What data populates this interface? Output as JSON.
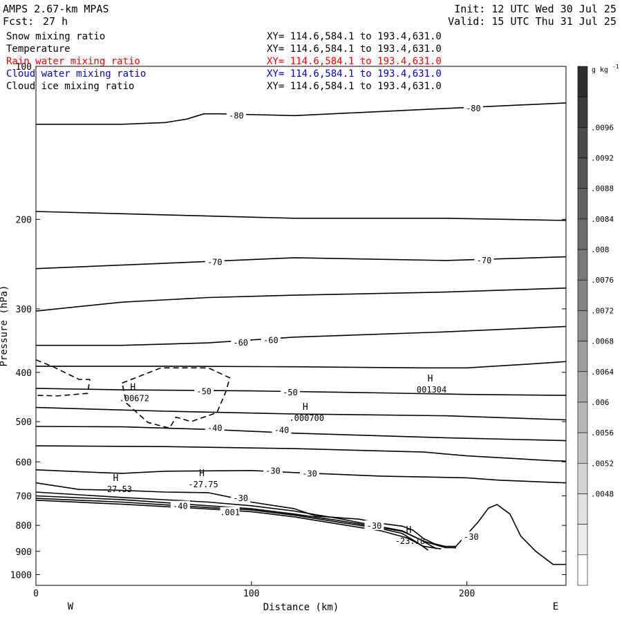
{
  "header": {
    "model": "AMPS 2.67-km MPAS",
    "fcst_label": "Fcst:",
    "fcst_value": "27 h",
    "init": "Init: 12 UTC Wed 30 Jul 25",
    "valid": "Valid: 15 UTC Thu 31 Jul 25"
  },
  "fields": [
    {
      "name": "Snow mixing ratio",
      "xy": "XY= 114.6,584.1 to 193.4,631.0",
      "color": "#000000"
    },
    {
      "name": "Temperature",
      "xy": "XY= 114.6,584.1 to 193.4,631.0",
      "color": "#000000"
    },
    {
      "name": "Rain water mixing ratio",
      "xy": "XY= 114.6,584.1 to 193.4,631.0",
      "color": "#ff0000"
    },
    {
      "name": "Cloud water mixing ratio",
      "xy": "XY= 114.6,584.1 to 193.4,631.0",
      "color": "#0000cc"
    },
    {
      "name": "Cloud ice mixing ratio",
      "xy": "XY= 114.6,584.1 to 193.4,631.0",
      "color": "#000000"
    }
  ],
  "chart_data": {
    "type": "line",
    "xlabel": "Distance (km)",
    "ylabel": "Pressure (hPa)",
    "xlim": [
      0,
      246
    ],
    "ylim": [
      1050,
      100
    ],
    "yscale": "log",
    "x_ticks": [
      0,
      100,
      200
    ],
    "y_ticks": [
      100,
      200,
      300,
      400,
      500,
      600,
      700,
      800,
      900,
      1000
    ],
    "x_end_labels": {
      "left": "W",
      "right": "E"
    },
    "temperature_isotherms": [
      {
        "level": -80,
        "x": [
          0,
          40,
          60,
          70,
          78,
          85,
          120,
          190,
          246
        ],
        "p": [
          130,
          130,
          129,
          127,
          124,
          124,
          125,
          121,
          118
        ]
      },
      {
        "level": -75,
        "x": [
          0,
          60,
          120,
          190,
          246
        ],
        "p": [
          193,
          196,
          199,
          199,
          201
        ]
      },
      {
        "level": -70,
        "x": [
          0,
          60,
          120,
          190,
          246
        ],
        "p": [
          250,
          244,
          238,
          241,
          237
        ]
      },
      {
        "level": -65,
        "x": [
          0,
          40,
          80,
          120,
          190,
          246
        ],
        "p": [
          303,
          291,
          285,
          282,
          278,
          273
        ]
      },
      {
        "level": -60,
        "x": [
          0,
          40,
          80,
          120,
          190,
          246
        ],
        "p": [
          354,
          354,
          350,
          341,
          333,
          325
        ]
      },
      {
        "level": -55,
        "x": [
          0,
          60,
          120,
          180,
          200,
          230,
          246
        ],
        "p": [
          389,
          389,
          390,
          392,
          392,
          385,
          381
        ]
      },
      {
        "level": -50,
        "x": [
          0,
          40,
          100,
          160,
          200,
          246
        ],
        "p": [
          430,
          433,
          435,
          439,
          442,
          444
        ]
      },
      {
        "level": -45,
        "x": [
          0,
          60,
          120,
          190,
          246
        ],
        "p": [
          469,
          477,
          483,
          487,
          496
        ]
      },
      {
        "level": -40,
        "x": [
          0,
          40,
          80,
          120,
          190,
          246
        ],
        "p": [
          511,
          512,
          518,
          527,
          538,
          545
        ]
      },
      {
        "level": -35,
        "x": [
          0,
          60,
          120,
          180,
          200,
          240,
          246
        ],
        "p": [
          558,
          560,
          565,
          574,
          584,
          597,
          598
        ]
      },
      {
        "level": -30,
        "x": [
          0,
          30,
          40,
          60,
          100,
          120,
          160,
          200,
          215,
          246
        ],
        "p": [
          622,
          630,
          632,
          626,
          624,
          630,
          640,
          645,
          652,
          660
        ]
      },
      {
        "level": -30,
        "x": [
          0,
          20,
          40,
          60,
          80,
          90,
          100,
          120,
          130,
          150,
          160,
          170,
          175,
          180,
          185,
          190,
          195
        ],
        "p": [
          660,
          680,
          683,
          688,
          690,
          704,
          720,
          742,
          767,
          778,
          793,
          803,
          818,
          850,
          870,
          880,
          880
        ]
      },
      {
        "level": -35,
        "x": [
          0,
          40,
          80,
          100,
          120,
          140,
          160,
          170,
          180,
          190,
          195
        ],
        "p": [
          688,
          705,
          720,
          732,
          750,
          775,
          805,
          820,
          860,
          885,
          885
        ]
      },
      {
        "level": -40,
        "x": [
          0,
          40,
          80,
          100,
          120,
          140,
          160,
          170,
          178,
          186
        ],
        "p": [
          700,
          712,
          732,
          742,
          760,
          782,
          808,
          822,
          852,
          890
        ]
      },
      {
        "level": -45,
        "x": [
          0,
          40,
          80,
          100,
          120,
          140,
          160,
          170,
          176,
          182
        ],
        "p": [
          708,
          720,
          738,
          746,
          764,
          788,
          812,
          830,
          860,
          895
        ]
      },
      {
        "level": -50,
        "x": [
          0,
          40,
          80,
          100,
          120,
          140,
          160,
          172,
          180,
          188
        ],
        "p": [
          714,
          727,
          743,
          752,
          770,
          795,
          820,
          846,
          880,
          890
        ]
      },
      {
        "level": -30,
        "x": [
          194,
          205,
          210,
          214,
          220,
          225,
          232,
          240,
          246
        ],
        "p": [
          888,
          790,
          740,
          728,
          760,
          840,
          900,
          955,
          955
        ]
      }
    ],
    "cloud_ice_contours": [
      {
        "level": 0.004,
        "x": [
          0,
          8,
          20,
          25,
          24,
          10,
          0
        ],
        "p": [
          378,
          390,
          413,
          413,
          440,
          445,
          444
        ]
      },
      {
        "level": 0.004,
        "x": [
          40,
          58,
          80,
          90,
          88,
          84,
          72,
          65,
          62,
          52,
          42,
          40
        ],
        "p": [
          420,
          392,
          392,
          410,
          438,
          480,
          500,
          490,
          515,
          502,
          460,
          420
        ]
      }
    ],
    "maxima": [
      {
        "symbol": "H",
        "value": ".00672",
        "x": 45,
        "p": 450
      },
      {
        "symbol": "H",
        "value": ".000700",
        "x": 125,
        "p": 492
      },
      {
        "symbol": "H",
        "value": "001304",
        "x": 183,
        "p": 433
      },
      {
        "symbol": "H",
        "value": "-27.53",
        "x": 37,
        "p": 680
      },
      {
        "symbol": "H",
        "value": "-27.75",
        "x": 77,
        "p": 665
      },
      {
        "symbol": "H",
        "value": "-23.18",
        "x": 173,
        "p": 860
      }
    ],
    "contour_labels": [
      {
        "text": "-80",
        "x": 93,
        "p": 125
      },
      {
        "text": "-80",
        "x": 203,
        "p": 121
      },
      {
        "text": "-70",
        "x": 83,
        "p": 243
      },
      {
        "text": "-70",
        "x": 208,
        "p": 241
      },
      {
        "text": "-60",
        "x": 95,
        "p": 350
      },
      {
        "text": "-60",
        "x": 109,
        "p": 346
      },
      {
        "text": "-50",
        "x": 78,
        "p": 436
      },
      {
        "text": "-50",
        "x": 118,
        "p": 438
      },
      {
        "text": "-40",
        "x": 83,
        "p": 515
      },
      {
        "text": "-40",
        "x": 114,
        "p": 520
      },
      {
        "text": "-30",
        "x": 110,
        "p": 625
      },
      {
        "text": "-30",
        "x": 127,
        "p": 633
      },
      {
        "text": "-30",
        "x": 95,
        "p": 708
      },
      {
        "text": "-40",
        "x": 67,
        "p": 734
      },
      {
        "text": ".001",
        "x": 90,
        "p": 755
      },
      {
        "text": "-30",
        "x": 157,
        "p": 802
      },
      {
        "text": "-30",
        "x": 202,
        "p": 843
      }
    ],
    "colorbar": {
      "unit": "g kg",
      "unit_sup": "-1",
      "labels": [
        ".0096",
        ".0092",
        ".0088",
        ".0084",
        ".008",
        ".0076",
        ".0072",
        ".0068",
        ".0064",
        ".006",
        ".0056",
        ".0052",
        ".0048"
      ],
      "colors": [
        "#2e2e2e",
        "#3c3c3c",
        "#4a4a4a",
        "#555555",
        "#616161",
        "#6c6c6c",
        "#787878",
        "#848484",
        "#909090",
        "#9c9c9c",
        "#a8a8a8",
        "#b6b6b6",
        "#c4c4c4",
        "#d2d2d2",
        "#e0e0e0",
        "#ececec",
        "#ffffff"
      ]
    }
  }
}
